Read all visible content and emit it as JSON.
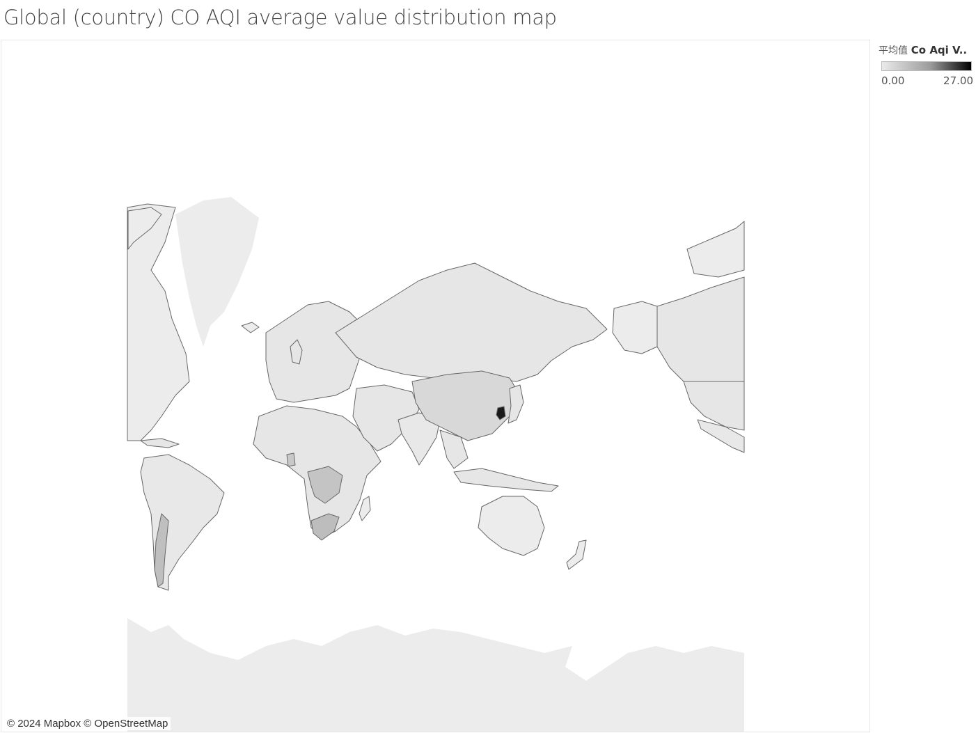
{
  "title": "Global (country) CO AQI average value distribution map",
  "legend": {
    "prefix": "平均值",
    "measure": "Co Aqi V..",
    "min_label": "0.00",
    "max_label": "27.00",
    "min": 0,
    "max": 27,
    "color_low": "#eaeaea",
    "color_high": "#000000"
  },
  "attribution": "© 2024 Mapbox © OpenStreetMap",
  "map_data": {
    "projection": "web-mercator",
    "base_land_color": "#ececec",
    "border_color": "#666666",
    "highlighted_regions": [
      {
        "name": "South Korea",
        "value": 27
      },
      {
        "name": "China",
        "value": 5
      },
      {
        "name": "DR Congo",
        "value": 6
      },
      {
        "name": "South Africa",
        "value": 7
      },
      {
        "name": "Chile",
        "value": 4
      },
      {
        "name": "Ghana",
        "value": 4
      }
    ]
  }
}
